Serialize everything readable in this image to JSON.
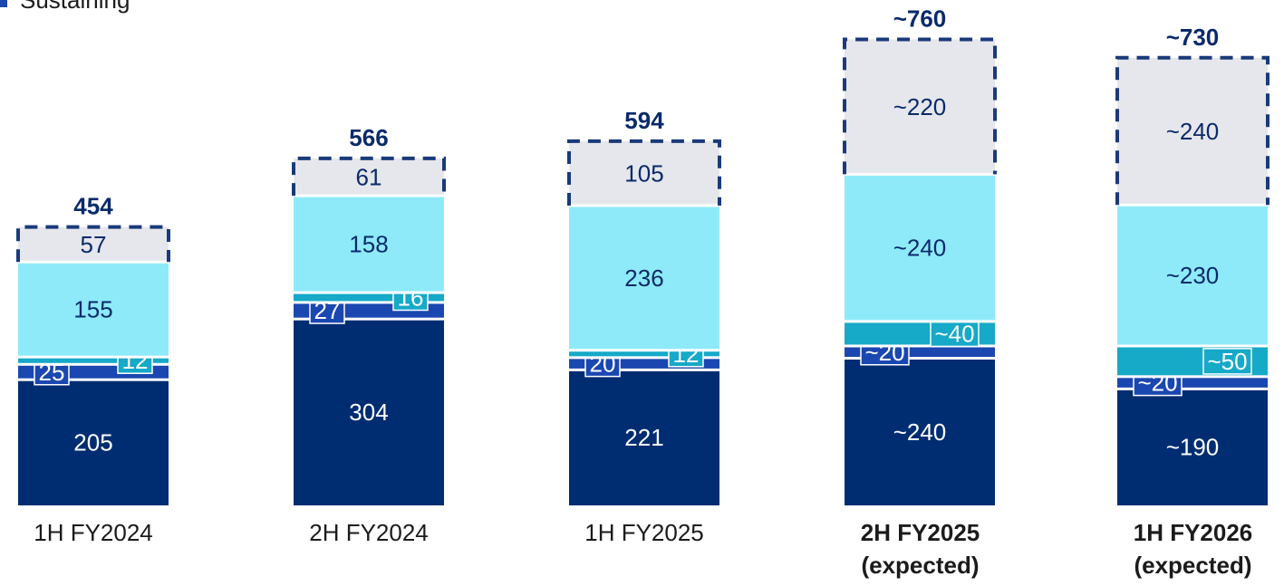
{
  "chart_data": {
    "type": "stacked-bar",
    "legend": [
      {
        "name": "Sustaining",
        "color": "#1a47b0"
      }
    ],
    "categories": [
      "1H FY2024",
      "2H FY2024",
      "1H FY2025",
      "2H FY2025 (expected)",
      "1H FY2026 (expected)"
    ],
    "category_bold": [
      false,
      false,
      false,
      true,
      true
    ],
    "series": [
      {
        "color": "#002d72",
        "text_color": "#ffffff",
        "values": [
          205,
          304,
          221,
          240,
          190
        ],
        "value_labels": [
          "205",
          "304",
          "221",
          "~240",
          "~190"
        ]
      },
      {
        "color": "#1a47b0",
        "text_color": "#ffffff",
        "label_side": "left",
        "values": [
          25,
          27,
          20,
          20,
          20
        ],
        "value_labels": [
          "25",
          "27",
          "20",
          "~20",
          "~20"
        ]
      },
      {
        "color": "#16a9c8",
        "text_color": "#ffffff",
        "label_side": "right",
        "values": [
          12,
          16,
          12,
          40,
          50
        ],
        "value_labels": [
          "12",
          "16",
          "12",
          "~40",
          "~50"
        ]
      },
      {
        "color": "#8eeaf9",
        "text_color": "#0a2a6b",
        "values": [
          155,
          158,
          236,
          240,
          230
        ],
        "value_labels": [
          "155",
          "158",
          "236",
          "~240",
          "~230"
        ]
      },
      {
        "color": "#e6e7ec",
        "text_color": "#0a2a6b",
        "values": [
          57,
          61,
          105,
          220,
          240
        ],
        "value_labels": [
          "57",
          "61",
          "105",
          "~220",
          "~240"
        ]
      }
    ],
    "totals": [
      454,
      566,
      594,
      760,
      730
    ],
    "total_labels": [
      "454",
      "566",
      "594",
      "~760",
      "~730"
    ],
    "dashed_series": 4,
    "dash_color": "#1a3a7a"
  }
}
